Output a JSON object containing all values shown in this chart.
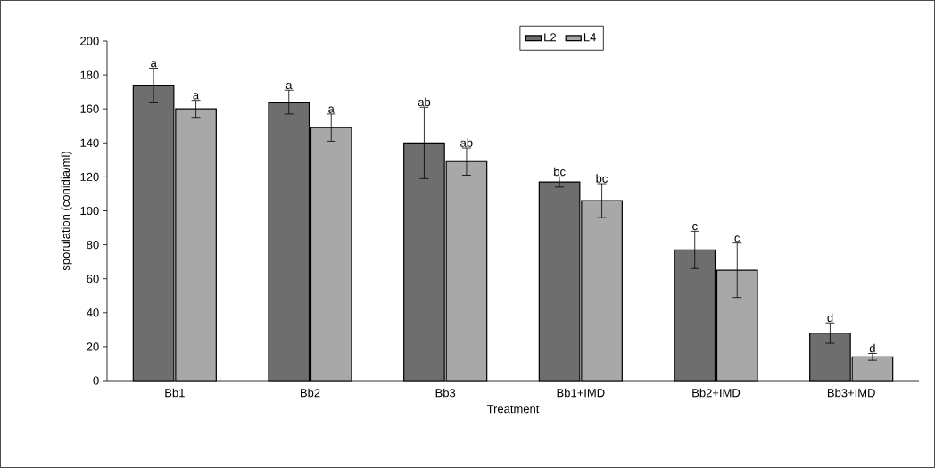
{
  "chart_data": {
    "type": "bar",
    "xlabel": "Treatment",
    "ylabel": "sporulation (conidia/ml)",
    "categories": [
      "Bb1",
      "Bb2",
      "Bb3",
      "Bb1+IMD",
      "Bb2+IMD",
      "Bb3+IMD"
    ],
    "series": [
      {
        "name": "L2",
        "color": "#6e6e6e",
        "values": [
          174,
          164,
          140,
          117,
          77,
          28
        ],
        "errors": [
          10,
          7,
          21,
          3,
          11,
          6
        ]
      },
      {
        "name": "L4",
        "color": "#a8a8a8",
        "values": [
          160,
          149,
          129,
          106,
          65,
          14
        ],
        "errors": [
          5,
          8,
          8,
          10,
          16,
          2
        ]
      }
    ],
    "ylim": [
      0,
      200
    ],
    "yticks": [
      0,
      20,
      40,
      60,
      80,
      100,
      120,
      140,
      160,
      180,
      200
    ],
    "legend": "top",
    "annotations": [
      "a",
      "a",
      "a",
      "a",
      "ab",
      "ab",
      "bc",
      "bc",
      "c",
      "c",
      "d",
      "d"
    ]
  }
}
